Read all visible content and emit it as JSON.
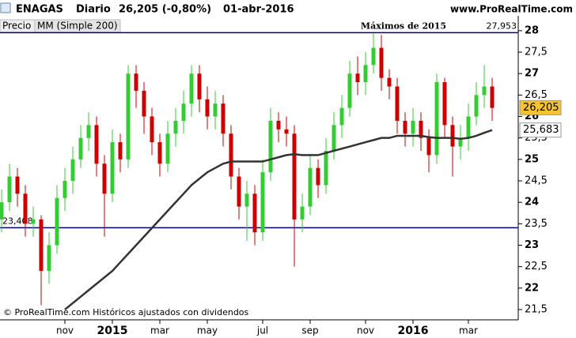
{
  "header": {
    "symbol": "ENAGAS",
    "period": "Diario",
    "quote": "26,205 (-0,80%)",
    "date": "01-abr-2016",
    "site": "www.ProRealTime.com",
    "tabs": [
      "Precio",
      "MM (Simple 200)"
    ],
    "footer": "© ProRealTime.com  Históricos ajustados con dividendos"
  },
  "chart_data": {
    "type": "candlestick",
    "categories": [
      null,
      null,
      null,
      null,
      null,
      null,
      null,
      null,
      "nov",
      null,
      null,
      null,
      null,
      null,
      "2015",
      null,
      null,
      null,
      null,
      null,
      "mar",
      null,
      null,
      null,
      null,
      null,
      "may",
      null,
      null,
      null,
      null,
      null,
      null,
      "jul",
      null,
      null,
      null,
      null,
      null,
      "sep",
      null,
      null,
      null,
      null,
      null,
      null,
      "nov",
      null,
      null,
      null,
      null,
      null,
      "2016",
      null,
      null,
      null,
      null,
      null,
      null,
      "mar",
      null,
      null,
      null
    ],
    "series": [
      {
        "name": "Precio",
        "up_color": "#33cc33",
        "down_color": "#cc0000",
        "open": [
          23.6,
          24.0,
          24.6,
          24.2,
          23.5,
          23.6,
          22.4,
          23.0,
          24.1,
          24.5,
          25.0,
          25.5,
          25.8,
          24.9,
          24.2,
          25.4,
          25.0,
          27.0,
          26.6,
          26.0,
          25.4,
          24.9,
          25.6,
          25.9,
          26.3,
          27.0,
          26.4,
          26.0,
          26.3,
          25.6,
          24.6,
          23.9,
          24.2,
          23.3,
          24.7,
          25.9,
          25.7,
          25.6,
          23.6,
          23.9,
          24.8,
          24.4,
          25.2,
          25.8,
          26.2,
          27.0,
          26.8,
          27.2,
          27.6,
          26.9,
          26.7,
          25.9,
          25.6,
          25.9,
          25.5,
          25.1,
          26.8,
          25.8,
          25.3,
          25.5,
          26.0,
          26.5,
          26.7
        ],
        "high": [
          24.3,
          24.9,
          24.8,
          24.4,
          23.9,
          23.7,
          23.3,
          24.4,
          24.8,
          25.3,
          25.8,
          26.1,
          26.0,
          25.1,
          25.7,
          25.6,
          27.2,
          27.2,
          26.8,
          26.2,
          25.6,
          25.9,
          26.2,
          26.6,
          27.2,
          27.2,
          26.7,
          26.6,
          26.5,
          25.8,
          24.8,
          24.5,
          24.4,
          25.0,
          26.2,
          26.1,
          26.0,
          25.8,
          24.2,
          25.1,
          25.0,
          25.5,
          26.1,
          26.5,
          27.3,
          27.4,
          27.5,
          27.95,
          27.9,
          27.1,
          26.9,
          26.1,
          26.2,
          26.1,
          25.7,
          27.0,
          26.9,
          26.0,
          25.8,
          26.3,
          26.8,
          27.2,
          26.9
        ],
        "low": [
          23.3,
          23.8,
          23.9,
          23.2,
          23.2,
          21.6,
          22.1,
          22.8,
          23.8,
          24.2,
          24.8,
          25.2,
          24.6,
          23.2,
          24.0,
          24.7,
          24.8,
          26.2,
          25.6,
          25.1,
          24.6,
          24.7,
          25.3,
          25.6,
          26.0,
          26.1,
          25.7,
          25.7,
          25.3,
          24.3,
          23.6,
          23.1,
          23.0,
          23.1,
          24.5,
          25.4,
          25.3,
          22.5,
          23.3,
          23.7,
          24.1,
          24.2,
          25.0,
          25.5,
          26.0,
          26.5,
          26.5,
          27.0,
          26.6,
          26.4,
          25.6,
          25.3,
          25.3,
          25.2,
          24.7,
          24.9,
          25.5,
          24.6,
          25.0,
          25.2,
          25.8,
          26.2,
          25.9
        ],
        "close": [
          24.0,
          24.6,
          24.2,
          23.5,
          23.6,
          22.4,
          23.0,
          24.1,
          24.5,
          25.0,
          25.5,
          25.8,
          24.9,
          24.2,
          25.4,
          25.0,
          27.0,
          26.6,
          26.0,
          25.4,
          24.9,
          25.6,
          25.9,
          26.3,
          27.0,
          26.4,
          26.0,
          26.3,
          25.6,
          24.6,
          23.9,
          24.2,
          23.3,
          24.7,
          25.9,
          25.7,
          25.6,
          23.6,
          23.9,
          24.8,
          24.4,
          25.2,
          25.8,
          26.2,
          27.0,
          26.8,
          27.2,
          27.6,
          26.9,
          26.7,
          25.9,
          25.6,
          25.9,
          25.5,
          25.1,
          26.8,
          25.8,
          25.3,
          25.5,
          26.0,
          26.5,
          26.7,
          26.2
        ],
        "last": {
          "value": 26.205,
          "label": "26,205"
        }
      },
      {
        "name": "MM (Simple 200)",
        "color": "#333333",
        "values": [
          null,
          null,
          null,
          null,
          null,
          null,
          null,
          null,
          21.5,
          21.65,
          21.8,
          21.95,
          22.1,
          22.25,
          22.4,
          22.6,
          22.8,
          23.0,
          23.2,
          23.4,
          23.6,
          23.8,
          24.0,
          24.2,
          24.4,
          24.55,
          24.7,
          24.8,
          24.9,
          24.95,
          24.95,
          24.95,
          24.95,
          24.95,
          25.0,
          25.05,
          25.1,
          25.12,
          25.1,
          25.1,
          25.1,
          25.15,
          25.2,
          25.25,
          25.3,
          25.35,
          25.4,
          25.45,
          25.5,
          25.5,
          25.55,
          25.55,
          25.55,
          25.55,
          25.52,
          25.5,
          25.5,
          25.5,
          25.48,
          25.5,
          25.55,
          25.62,
          25.683
        ],
        "last": {
          "value": 25.683,
          "label": "25,683"
        }
      }
    ],
    "levels": [
      {
        "value": 27.953,
        "label": "27,953",
        "text": "Máximos de 2015",
        "color": "#000080"
      },
      {
        "value": 23.408,
        "label": "23,408",
        "color": "#000080"
      }
    ],
    "ylim": [
      21.26,
      28.2
    ],
    "yticks": [
      {
        "value": 21.5,
        "label": "21,5"
      },
      22,
      {
        "value": 22.5,
        "label": "22,5"
      },
      23,
      {
        "value": 23.5,
        "label": "23,5"
      },
      24,
      {
        "value": 24.5,
        "label": "24,5"
      },
      25,
      {
        "value": 25.5,
        "label": "25,5"
      },
      26,
      {
        "value": 26.5,
        "label": "26,5"
      },
      27,
      {
        "value": 27.5,
        "label": "27,5"
      },
      28
    ]
  }
}
